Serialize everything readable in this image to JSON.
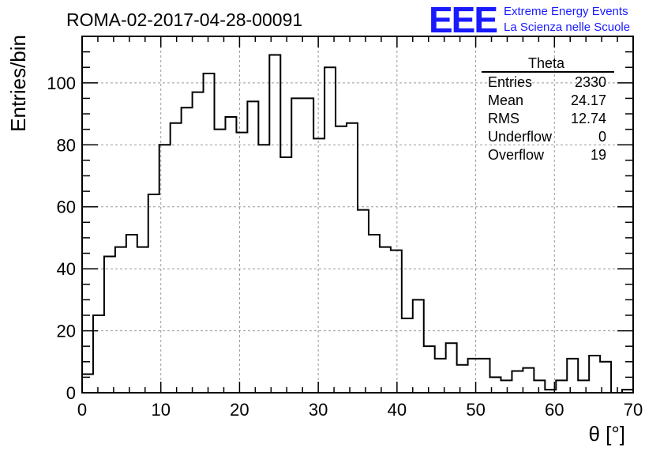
{
  "chart_data": {
    "type": "bar",
    "style": "step-histogram",
    "title": "ROMA-02-2017-04-28-00091",
    "xlabel": "θ [°]",
    "ylabel": "Entries/bin",
    "xlim": [
      0,
      70
    ],
    "ylim": [
      0,
      115
    ],
    "bin_width": 1.4,
    "x_ticks": [
      0,
      10,
      20,
      30,
      40,
      50,
      60,
      70
    ],
    "y_ticks": [
      0,
      20,
      40,
      60,
      80,
      100
    ],
    "grid": true,
    "values": [
      6,
      25,
      44,
      47,
      51,
      47,
      64,
      80,
      87,
      92,
      97,
      103,
      85,
      89,
      84,
      94,
      80,
      109,
      76,
      95,
      95,
      82,
      105,
      86,
      87,
      59,
      51,
      47,
      46,
      24,
      30,
      15,
      11,
      16,
      9,
      11,
      11,
      5,
      4,
      7,
      8,
      4,
      1,
      4,
      11,
      4,
      12,
      10,
      0,
      1
    ],
    "stats": {
      "title": "Theta",
      "rows": [
        {
          "label": "Entries",
          "value": "2330"
        },
        {
          "label": "Mean",
          "value": "24.17"
        },
        {
          "label": "RMS",
          "value": "12.74"
        },
        {
          "label": "Underflow",
          "value": "0"
        },
        {
          "label": "Overflow",
          "value": "19"
        }
      ]
    }
  },
  "logo": {
    "mark": "EEE",
    "line1": "Extreme Energy Events",
    "line2": "La Scienza nelle Scuole",
    "color": "#1a1aff"
  }
}
